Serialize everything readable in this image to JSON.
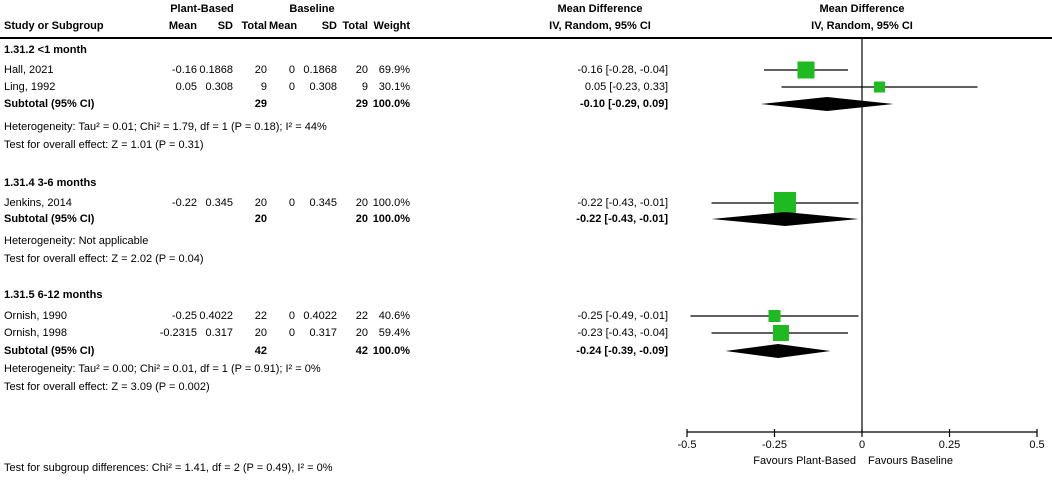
{
  "meta": {
    "background_color": "#ffffff",
    "text_color": "#000000",
    "square_color": "#1fba1f",
    "diamond_color": "#000000",
    "line_color": "#000000"
  },
  "header": {
    "row1": {
      "group1": "Plant-Based",
      "group2": "Baseline",
      "md_text": "Mean Difference",
      "md_plot": "Mean Difference"
    },
    "row2": {
      "study": "Study or Subgroup",
      "mean1": "Mean",
      "sd1": "SD",
      "total1": "Total",
      "mean2": "Mean",
      "sd2": "SD",
      "total2": "Total",
      "weight": "Weight",
      "iv_text": "IV, Random, 95% CI",
      "iv_plot": "IV, Random, 95% CI"
    }
  },
  "chart_data": {
    "type": "forest",
    "effect_measure": "Mean Difference",
    "method": "IV, Random, 95% CI",
    "axis": {
      "min": -0.5,
      "max": 0.5,
      "tick_values": [
        -0.5,
        -0.25,
        0,
        0.25,
        0.5
      ],
      "tick_labels": [
        "-0.5",
        "-0.25",
        "0",
        "0.25",
        "0.5"
      ],
      "favours_left": "Favours Plant-Based",
      "favours_right": "Favours Baseline"
    },
    "subgroups": [
      {
        "label": "1.31.2 <1 month",
        "studies": [
          {
            "name": "Hall, 2021",
            "mean1": "-0.16",
            "sd1": "0.1868",
            "total1": "20",
            "mean2": "0",
            "sd2": "0.1868",
            "total2": "20",
            "weight": "69.9%",
            "weight_pct": 69.9,
            "ci_text": "-0.16 [-0.28, -0.04]",
            "est": -0.16,
            "lo": -0.28,
            "hi": -0.04
          },
          {
            "name": "Ling, 1992",
            "mean1": "0.05",
            "sd1": "0.308",
            "total1": "9",
            "mean2": "0",
            "sd2": "0.308",
            "total2": "9",
            "weight": "30.1%",
            "weight_pct": 30.1,
            "ci_text": "0.05 [-0.23, 0.33]",
            "est": 0.05,
            "lo": -0.23,
            "hi": 0.33
          }
        ],
        "subtotal": {
          "label": "Subtotal (95% CI)",
          "total1": "29",
          "total2": "29",
          "weight": "100.0%",
          "ci_text": "-0.10 [-0.29, 0.09]",
          "est": -0.1,
          "lo": -0.29,
          "hi": 0.09
        },
        "heterogeneity": "Heterogeneity: Tau² = 0.01; Chi² = 1.79, df = 1 (P = 0.18); I² = 44%",
        "overall": "Test for overall effect: Z = 1.01 (P = 0.31)"
      },
      {
        "label": "1.31.4 3-6 months",
        "studies": [
          {
            "name": "Jenkins, 2014",
            "mean1": "-0.22",
            "sd1": "0.345",
            "total1": "20",
            "mean2": "0",
            "sd2": "0.345",
            "total2": "20",
            "weight": "100.0%",
            "weight_pct": 100.0,
            "ci_text": "-0.22 [-0.43, -0.01]",
            "est": -0.22,
            "lo": -0.43,
            "hi": -0.01
          }
        ],
        "subtotal": {
          "label": "Subtotal (95% CI)",
          "total1": "20",
          "total2": "20",
          "weight": "100.0%",
          "ci_text": "-0.22 [-0.43, -0.01]",
          "est": -0.22,
          "lo": -0.43,
          "hi": -0.01
        },
        "heterogeneity": "Heterogeneity: Not applicable",
        "overall": "Test for overall effect: Z = 2.02 (P = 0.04)"
      },
      {
        "label": "1.31.5 6-12 months",
        "studies": [
          {
            "name": "Ornish, 1990",
            "mean1": "-0.25",
            "sd1": "0.4022",
            "total1": "22",
            "mean2": "0",
            "sd2": "0.4022",
            "total2": "22",
            "weight": "40.6%",
            "weight_pct": 40.6,
            "ci_text": "-0.25 [-0.49, -0.01]",
            "est": -0.25,
            "lo": -0.49,
            "hi": -0.01
          },
          {
            "name": "Ornish, 1998",
            "mean1": "-0.2315",
            "sd1": "0.317",
            "total1": "20",
            "mean2": "0",
            "sd2": "0.317",
            "total2": "20",
            "weight": "59.4%",
            "weight_pct": 59.4,
            "ci_text": "-0.23 [-0.43, -0.04]",
            "est": -0.2315,
            "lo": -0.43,
            "hi": -0.04
          }
        ],
        "subtotal": {
          "label": "Subtotal (95% CI)",
          "total1": "42",
          "total2": "42",
          "weight": "100.0%",
          "ci_text": "-0.24 [-0.39, -0.09]",
          "est": -0.24,
          "lo": -0.39,
          "hi": -0.09
        },
        "heterogeneity": "Heterogeneity: Tau² = 0.00; Chi² = 0.01, df = 1 (P = 0.91); I² = 0%",
        "overall": "Test for overall effect: Z = 3.09 (P = 0.002)"
      }
    ],
    "footer": "Test for subgroup differences: Chi² = 1.41, df = 2 (P = 0.49), I² = 0%"
  }
}
